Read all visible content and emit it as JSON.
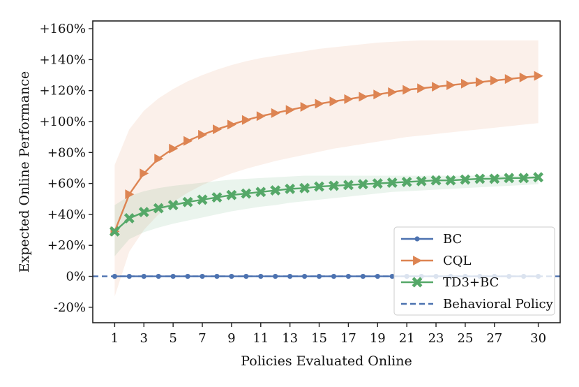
{
  "chart_data": {
    "type": "line",
    "title": "",
    "xlabel": "Policies Evaluated Online",
    "ylabel": "Expected Online Performance",
    "xlim": [
      -0.5,
      31.5
    ],
    "ylim": [
      -30,
      165
    ],
    "xticks": [
      1,
      3,
      5,
      7,
      9,
      11,
      13,
      15,
      17,
      19,
      21,
      23,
      25,
      27,
      30
    ],
    "yticks": [
      -20,
      0,
      20,
      40,
      60,
      80,
      100,
      120,
      140,
      160
    ],
    "ytick_labels": [
      "-20%",
      "0%",
      "+20%",
      "+40%",
      "+60%",
      "+80%",
      "+100%",
      "+120%",
      "+140%",
      "+160%"
    ],
    "grid": false,
    "legend_position": "bottom-right",
    "x": [
      1,
      2,
      3,
      4,
      5,
      6,
      7,
      8,
      9,
      10,
      11,
      12,
      13,
      14,
      15,
      16,
      17,
      18,
      19,
      20,
      21,
      22,
      23,
      24,
      25,
      26,
      27,
      28,
      29,
      30
    ],
    "series": [
      {
        "name": "BC",
        "color": "#4c72b0",
        "marker": "circle",
        "values": [
          0,
          0,
          0,
          0,
          0,
          0,
          0,
          0,
          0,
          0,
          0,
          0,
          0,
          0,
          0,
          0,
          0,
          0,
          0,
          0,
          0,
          0,
          0,
          0,
          0,
          0,
          0,
          0,
          0,
          0
        ]
      },
      {
        "name": "CQL",
        "color": "#dd8452",
        "marker": "triangle-right",
        "values": [
          29,
          53,
          66.5,
          76,
          82.5,
          87.5,
          91.5,
          95,
          98,
          101,
          103.5,
          105.5,
          107.5,
          109.5,
          111.5,
          113,
          114.5,
          116,
          117.5,
          119,
          120.5,
          121.5,
          122.5,
          123.5,
          124.5,
          125.5,
          126.5,
          127.5,
          128.5,
          129.5
        ],
        "band_upper": [
          72,
          95,
          107,
          115,
          121,
          126,
          130,
          133.5,
          136.5,
          139,
          141,
          142.5,
          144,
          145.5,
          147,
          148,
          149,
          150,
          151,
          151.5,
          152,
          152.5,
          152.5,
          152.5,
          152.5,
          152.5,
          152.5,
          152.5,
          152.5,
          152.5
        ],
        "band_lower": [
          -13,
          16,
          30,
          40,
          48,
          54,
          59,
          63,
          66.5,
          69.5,
          72,
          74.5,
          76.5,
          78.5,
          80.5,
          82.5,
          84,
          85.5,
          87,
          88.5,
          90,
          91,
          92,
          93,
          94,
          95,
          96,
          97,
          98,
          99
        ]
      },
      {
        "name": "TD3+BC",
        "color": "#55a868",
        "marker": "x",
        "values": [
          29,
          37.5,
          41.5,
          44,
          46,
          48,
          49.5,
          51,
          52.5,
          53.5,
          54.5,
          55.5,
          56.5,
          57,
          58,
          58.5,
          59,
          59.5,
          60,
          60.5,
          61,
          61.5,
          62,
          62,
          62.5,
          63,
          63,
          63.5,
          63.5,
          64
        ],
        "band_upper": [
          46,
          52,
          55,
          57,
          58.5,
          59.5,
          60.5,
          61.5,
          62.5,
          63,
          63.5,
          64,
          64.5,
          65,
          65,
          65,
          65,
          65,
          65,
          65,
          65,
          65,
          65,
          65,
          65,
          65,
          65,
          65,
          65,
          65
        ],
        "band_lower": [
          13,
          24,
          28.5,
          31.5,
          34,
          36,
          38,
          40,
          42,
          43.5,
          45,
          46,
          47.5,
          48.5,
          49.5,
          50.5,
          51.5,
          52.5,
          53.5,
          54.5,
          55,
          55.5,
          56,
          56.5,
          57,
          57.5,
          58,
          58.5,
          59,
          59.5
        ]
      }
    ],
    "reference_line": {
      "name": "Behavioral Policy",
      "value": 0,
      "color": "#4c72b0",
      "style": "dashed"
    }
  }
}
